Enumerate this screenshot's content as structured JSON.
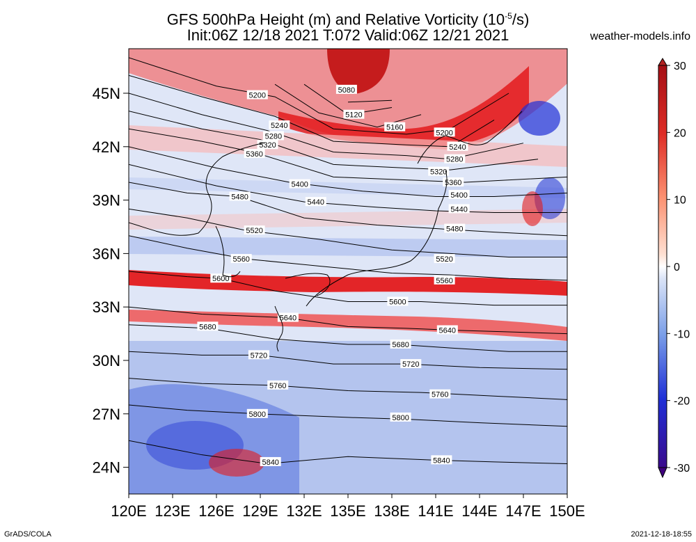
{
  "header": {
    "title_line1": "GFS 500hPa Height (m) and Relative Vorticity (10",
    "title_exp": "-5",
    "title_line1_end": "/s)",
    "title_line2": "Init:06Z 12/18 2021 T:072 Valid:06Z 12/21 2021",
    "site": "weather-models.info"
  },
  "footer": {
    "left": "GrADS/COLA",
    "right": "2021-12-18-18:55"
  },
  "map": {
    "lat_labels": [
      "45N",
      "42N",
      "39N",
      "36N",
      "33N",
      "30N",
      "27N",
      "24N"
    ],
    "lat_values": [
      45,
      42,
      39,
      36,
      33,
      30,
      27,
      24
    ],
    "lon_labels": [
      "120E",
      "123E",
      "126E",
      "129E",
      "132E",
      "135E",
      "138E",
      "141E",
      "144E",
      "147E",
      "150E"
    ],
    "lon_values": [
      120,
      123,
      126,
      129,
      132,
      135,
      138,
      141,
      144,
      147,
      150
    ],
    "lon_range": [
      120,
      150
    ],
    "lat_range": [
      22.5,
      47.5
    ],
    "contours": [
      {
        "label": "5080",
        "pts": [
          [
            135,
            44.5
          ],
          [
            138,
            44.6
          ]
        ],
        "labels": [
          [
            134.9,
            45.2
          ]
        ]
      },
      {
        "label": "5120",
        "pts": [
          [
            132,
            45.5
          ],
          [
            135,
            43.8
          ],
          [
            138,
            44.2
          ]
        ],
        "labels": [
          [
            135.4,
            43.8
          ]
        ]
      },
      {
        "label": "5160",
        "pts": [
          [
            130,
            45.5
          ],
          [
            133,
            43.9
          ],
          [
            137,
            43.1
          ],
          [
            140,
            43.8
          ]
        ],
        "labels": [
          [
            138.2,
            43.1
          ]
        ]
      },
      {
        "label": "5200",
        "pts": [
          [
            120,
            47
          ],
          [
            126,
            45.4
          ],
          [
            130,
            44.8
          ],
          [
            134,
            43.0
          ],
          [
            139,
            42.7
          ],
          [
            142,
            43.0
          ],
          [
            146,
            45
          ]
        ],
        "labels": [
          [
            128.8,
            44.9
          ],
          [
            141.6,
            42.8
          ]
        ]
      },
      {
        "label": "5240",
        "pts": [
          [
            120,
            46
          ],
          [
            125,
            44.8
          ],
          [
            130,
            43.7
          ],
          [
            134,
            42.3
          ],
          [
            139,
            42.1
          ],
          [
            142,
            42.0
          ],
          [
            145,
            43.5
          ]
        ],
        "labels": [
          [
            130.3,
            43.2
          ],
          [
            142.5,
            42.0
          ]
        ]
      },
      {
        "label": "5280",
        "pts": [
          [
            120,
            45
          ],
          [
            125,
            43.8
          ],
          [
            129.5,
            42.9
          ],
          [
            134,
            41.7
          ],
          [
            139,
            41.5
          ],
          [
            142,
            41.3
          ],
          [
            147,
            42.2
          ]
        ],
        "labels": [
          [
            129.9,
            42.6
          ],
          [
            142.3,
            41.3
          ]
        ]
      },
      {
        "label": "5320",
        "pts": [
          [
            120,
            44
          ],
          [
            125,
            43.0
          ],
          [
            129,
            42.4
          ],
          [
            134,
            41.0
          ],
          [
            139,
            40.8
          ],
          [
            142,
            40.7
          ],
          [
            148,
            41.3
          ]
        ],
        "labels": [
          [
            129.5,
            42.1
          ],
          [
            141.2,
            40.6
          ]
        ]
      },
      {
        "label": "5360",
        "pts": [
          [
            120,
            43
          ],
          [
            125,
            42.3
          ],
          [
            128.5,
            41.7
          ],
          [
            134,
            40.3
          ],
          [
            140,
            40.1
          ],
          [
            143,
            40.0
          ],
          [
            150,
            40.3
          ]
        ],
        "labels": [
          [
            128.6,
            41.6
          ],
          [
            142.2,
            40.0
          ]
        ]
      },
      {
        "label": "5400",
        "pts": [
          [
            120,
            42
          ],
          [
            126,
            40.8
          ],
          [
            131,
            40.0
          ],
          [
            136,
            39.5
          ],
          [
            141,
            39.2
          ],
          [
            145,
            39.2
          ],
          [
            150,
            39.4
          ]
        ],
        "labels": [
          [
            131.7,
            39.9
          ],
          [
            142.6,
            39.3
          ]
        ]
      },
      {
        "label": "5440",
        "pts": [
          [
            120,
            41
          ],
          [
            126,
            39.8
          ],
          [
            132,
            38.9
          ],
          [
            137,
            38.6
          ],
          [
            141,
            38.4
          ],
          [
            145,
            38.3
          ],
          [
            150,
            38.3
          ]
        ],
        "labels": [
          [
            132.8,
            38.9
          ],
          [
            142.6,
            38.5
          ]
        ]
      },
      {
        "label": "5480",
        "pts": [
          [
            120,
            40
          ],
          [
            124,
            39.4
          ],
          [
            127.5,
            39.2
          ],
          [
            132,
            38.0
          ],
          [
            137,
            37.6
          ],
          [
            141,
            37.4
          ],
          [
            145,
            37.2
          ],
          [
            150,
            37.0
          ]
        ],
        "labels": [
          [
            127.6,
            39.2
          ],
          [
            142.3,
            37.4
          ]
        ]
      },
      {
        "label": "5520",
        "pts": [
          [
            120,
            38.5
          ],
          [
            124,
            38.0
          ],
          [
            128,
            37.3
          ],
          [
            133,
            36.8
          ],
          [
            138,
            36.2
          ],
          [
            142,
            36.0
          ],
          [
            146,
            35.8
          ],
          [
            150,
            35.8
          ]
        ],
        "labels": [
          [
            128.6,
            37.3
          ],
          [
            141.6,
            35.7
          ]
        ]
      },
      {
        "label": "5560",
        "pts": [
          [
            120,
            37
          ],
          [
            124,
            36.3
          ],
          [
            128,
            35.7
          ],
          [
            133,
            35.3
          ],
          [
            138,
            34.9
          ],
          [
            142,
            34.8
          ],
          [
            146,
            34.6
          ],
          [
            150,
            34.5
          ]
        ],
        "labels": [
          [
            127.7,
            35.7
          ],
          [
            141.6,
            34.5
          ]
        ]
      },
      {
        "label": "5600",
        "pts": [
          [
            120,
            35
          ],
          [
            124,
            34.7
          ],
          [
            126.3,
            34.6
          ],
          [
            130,
            33.9
          ],
          [
            135,
            33.3
          ],
          [
            140,
            33.3
          ],
          [
            145,
            33.1
          ],
          [
            150,
            33.1
          ]
        ],
        "labels": [
          [
            126.3,
            34.6
          ],
          [
            138.4,
            33.3
          ]
        ]
      },
      {
        "label": "5640",
        "pts": [
          [
            120,
            33
          ],
          [
            125,
            32.6
          ],
          [
            130.7,
            32.4
          ],
          [
            135,
            31.9
          ],
          [
            139,
            31.8
          ],
          [
            142,
            31.7
          ],
          [
            146,
            31.6
          ],
          [
            150,
            31.5
          ]
        ],
        "labels": [
          [
            130.9,
            32.4
          ],
          [
            141.8,
            31.7
          ]
        ]
      },
      {
        "label": "5680",
        "pts": [
          [
            120,
            32
          ],
          [
            125.4,
            31.8
          ],
          [
            130,
            31.2
          ],
          [
            135,
            30.9
          ],
          [
            138.4,
            30.9
          ],
          [
            142,
            30.7
          ],
          [
            146,
            30.5
          ],
          [
            150,
            30.5
          ]
        ],
        "labels": [
          [
            125.4,
            31.9
          ],
          [
            138.6,
            30.9
          ]
        ]
      },
      {
        "label": "5720",
        "pts": [
          [
            120,
            30.5
          ],
          [
            125,
            30.3
          ],
          [
            128.9,
            30.3
          ],
          [
            134,
            29.8
          ],
          [
            139,
            29.8
          ],
          [
            144,
            29.6
          ],
          [
            150,
            29.5
          ]
        ],
        "labels": [
          [
            128.9,
            30.3
          ],
          [
            139.3,
            29.8
          ]
        ]
      },
      {
        "label": "5760",
        "pts": [
          [
            120,
            29
          ],
          [
            125,
            28.7
          ],
          [
            130,
            28.6
          ],
          [
            135,
            28.3
          ],
          [
            140,
            28.2
          ],
          [
            145,
            28.0
          ],
          [
            150,
            27.8
          ]
        ],
        "labels": [
          [
            130.2,
            28.6
          ],
          [
            141.3,
            28.1
          ]
        ]
      },
      {
        "label": "5800",
        "pts": [
          [
            120,
            27.5
          ],
          [
            124,
            27.2
          ],
          [
            128.8,
            27.0
          ],
          [
            135,
            26.8
          ],
          [
            139,
            26.7
          ],
          [
            144,
            26.5
          ],
          [
            150,
            26.3
          ]
        ],
        "labels": [
          [
            128.8,
            27.0
          ],
          [
            138.6,
            26.8
          ]
        ]
      },
      {
        "label": "5840",
        "pts": [
          [
            120,
            25.5
          ],
          [
            125,
            24.7
          ],
          [
            129.5,
            24.2
          ],
          [
            135,
            24.6
          ],
          [
            141,
            24.4
          ],
          [
            145,
            24.3
          ],
          [
            150,
            24.2
          ]
        ],
        "labels": [
          [
            129.7,
            24.3
          ],
          [
            141.4,
            24.4
          ]
        ]
      }
    ]
  },
  "colorbar": {
    "ticks": [
      "30",
      "20",
      "10",
      "0",
      "-10",
      "-20",
      "-30"
    ],
    "tick_values": [
      30,
      20,
      10,
      0,
      -10,
      -20,
      -30
    ],
    "colors": [
      "#b22222",
      "#e31a1c",
      "#fb6a4a",
      "#fcbba1",
      "#ffffff",
      "#c6dbef",
      "#6baed6",
      "#2171b5",
      "#08306b",
      "#3f007d"
    ]
  }
}
